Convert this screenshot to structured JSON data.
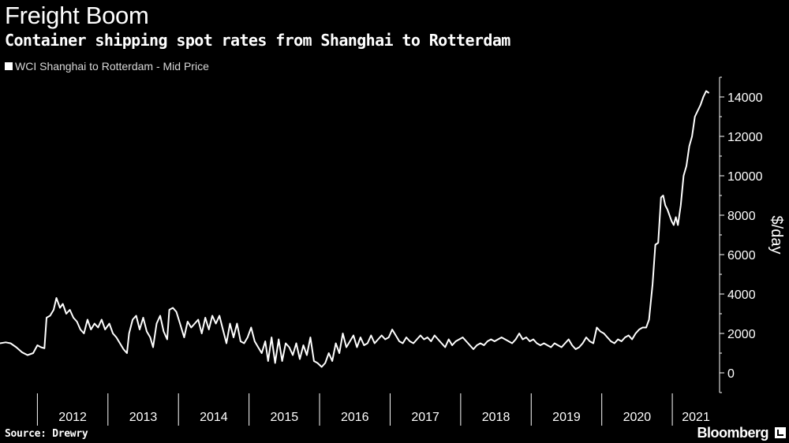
{
  "header": {
    "title": "Freight Boom",
    "subtitle": "Container shipping spot rates from Shanghai to Rotterdam"
  },
  "footer": {
    "source": "Source: Drewry",
    "brand": "Bloomberg"
  },
  "colors": {
    "background": "#000000",
    "line": "#ffffff",
    "axis": "#ffffff"
  },
  "chart_data": {
    "type": "line",
    "title": "Freight Boom",
    "subtitle": "Container shipping spot rates from Shanghai to Rotterdam",
    "ylabel": "$/day",
    "ylim": [
      -1000,
      15000
    ],
    "yticks": [
      0,
      2000,
      4000,
      6000,
      8000,
      10000,
      12000,
      14000
    ],
    "xlim": [
      2011.47,
      2021.67
    ],
    "x_tick_labels": [
      "2012",
      "2013",
      "2014",
      "2015",
      "2016",
      "2017",
      "2018",
      "2019",
      "2020",
      "2021"
    ],
    "legend": "top-left",
    "grid": false,
    "series": [
      {
        "name": "WCI Shanghai to Rotterdam - Mid Price",
        "points": [
          [
            2011.47,
            1500
          ],
          [
            2011.55,
            1550
          ],
          [
            2011.62,
            1500
          ],
          [
            2011.7,
            1300
          ],
          [
            2011.78,
            1050
          ],
          [
            2011.86,
            900
          ],
          [
            2011.94,
            1000
          ],
          [
            2012.0,
            1400
          ],
          [
            2012.05,
            1300
          ],
          [
            2012.1,
            1250
          ],
          [
            2012.13,
            2800
          ],
          [
            2012.18,
            2900
          ],
          [
            2012.23,
            3200
          ],
          [
            2012.27,
            3800
          ],
          [
            2012.32,
            3300
          ],
          [
            2012.36,
            3500
          ],
          [
            2012.41,
            3000
          ],
          [
            2012.46,
            3200
          ],
          [
            2012.51,
            2800
          ],
          [
            2012.56,
            2600
          ],
          [
            2012.61,
            2200
          ],
          [
            2012.66,
            2000
          ],
          [
            2012.71,
            2700
          ],
          [
            2012.76,
            2200
          ],
          [
            2012.81,
            2500
          ],
          [
            2012.86,
            2300
          ],
          [
            2012.91,
            2700
          ],
          [
            2012.96,
            2200
          ],
          [
            2013.02,
            2500
          ],
          [
            2013.07,
            2000
          ],
          [
            2013.12,
            1800
          ],
          [
            2013.17,
            1500
          ],
          [
            2013.22,
            1200
          ],
          [
            2013.27,
            1000
          ],
          [
            2013.3,
            2000
          ],
          [
            2013.35,
            2700
          ],
          [
            2013.4,
            2900
          ],
          [
            2013.45,
            2200
          ],
          [
            2013.5,
            2800
          ],
          [
            2013.55,
            2100
          ],
          [
            2013.6,
            1800
          ],
          [
            2013.64,
            1300
          ],
          [
            2013.69,
            2500
          ],
          [
            2013.74,
            2900
          ],
          [
            2013.79,
            2100
          ],
          [
            2013.84,
            1700
          ],
          [
            2013.87,
            3200
          ],
          [
            2013.92,
            3300
          ],
          [
            2013.97,
            3100
          ],
          [
            2014.03,
            2400
          ],
          [
            2014.08,
            1800
          ],
          [
            2014.13,
            2600
          ],
          [
            2014.18,
            2300
          ],
          [
            2014.23,
            2500
          ],
          [
            2014.28,
            2700
          ],
          [
            2014.33,
            2000
          ],
          [
            2014.38,
            2800
          ],
          [
            2014.43,
            2200
          ],
          [
            2014.48,
            2900
          ],
          [
            2014.53,
            2500
          ],
          [
            2014.58,
            2900
          ],
          [
            2014.63,
            2200
          ],
          [
            2014.68,
            1500
          ],
          [
            2014.73,
            2500
          ],
          [
            2014.78,
            1800
          ],
          [
            2014.83,
            2500
          ],
          [
            2014.88,
            1600
          ],
          [
            2014.93,
            1500
          ],
          [
            2014.98,
            1800
          ],
          [
            2015.03,
            2300
          ],
          [
            2015.08,
            1600
          ],
          [
            2015.13,
            1300
          ],
          [
            2015.18,
            1000
          ],
          [
            2015.23,
            1600
          ],
          [
            2015.27,
            600
          ],
          [
            2015.32,
            1800
          ],
          [
            2015.37,
            500
          ],
          [
            2015.42,
            1700
          ],
          [
            2015.47,
            600
          ],
          [
            2015.52,
            1500
          ],
          [
            2015.57,
            1300
          ],
          [
            2015.62,
            900
          ],
          [
            2015.67,
            1500
          ],
          [
            2015.72,
            700
          ],
          [
            2015.77,
            1400
          ],
          [
            2015.82,
            900
          ],
          [
            2015.87,
            1800
          ],
          [
            2015.92,
            600
          ],
          [
            2015.97,
            500
          ],
          [
            2016.03,
            300
          ],
          [
            2016.08,
            500
          ],
          [
            2016.13,
            1000
          ],
          [
            2016.18,
            600
          ],
          [
            2016.23,
            1500
          ],
          [
            2016.28,
            1000
          ],
          [
            2016.33,
            2000
          ],
          [
            2016.38,
            1300
          ],
          [
            2016.43,
            1600
          ],
          [
            2016.48,
            1900
          ],
          [
            2016.53,
            1300
          ],
          [
            2016.58,
            1800
          ],
          [
            2016.63,
            1400
          ],
          [
            2016.68,
            1500
          ],
          [
            2016.73,
            1900
          ],
          [
            2016.78,
            1500
          ],
          [
            2016.83,
            1700
          ],
          [
            2016.88,
            1900
          ],
          [
            2016.93,
            1700
          ],
          [
            2016.98,
            1800
          ],
          [
            2017.03,
            2200
          ],
          [
            2017.08,
            1900
          ],
          [
            2017.13,
            1600
          ],
          [
            2017.18,
            1500
          ],
          [
            2017.23,
            1800
          ],
          [
            2017.28,
            1600
          ],
          [
            2017.33,
            1500
          ],
          [
            2017.38,
            1700
          ],
          [
            2017.43,
            1900
          ],
          [
            2017.48,
            1700
          ],
          [
            2017.53,
            1800
          ],
          [
            2017.58,
            1600
          ],
          [
            2017.63,
            1900
          ],
          [
            2017.68,
            1700
          ],
          [
            2017.73,
            1500
          ],
          [
            2017.78,
            1300
          ],
          [
            2017.83,
            1700
          ],
          [
            2017.88,
            1400
          ],
          [
            2017.93,
            1600
          ],
          [
            2017.98,
            1700
          ],
          [
            2018.03,
            1800
          ],
          [
            2018.08,
            1600
          ],
          [
            2018.13,
            1400
          ],
          [
            2018.18,
            1200
          ],
          [
            2018.23,
            1400
          ],
          [
            2018.28,
            1500
          ],
          [
            2018.33,
            1400
          ],
          [
            2018.38,
            1600
          ],
          [
            2018.43,
            1700
          ],
          [
            2018.48,
            1600
          ],
          [
            2018.53,
            1700
          ],
          [
            2018.58,
            1800
          ],
          [
            2018.63,
            1700
          ],
          [
            2018.68,
            1600
          ],
          [
            2018.73,
            1500
          ],
          [
            2018.78,
            1700
          ],
          [
            2018.83,
            2000
          ],
          [
            2018.88,
            1700
          ],
          [
            2018.93,
            1800
          ],
          [
            2018.98,
            1600
          ],
          [
            2019.03,
            1700
          ],
          [
            2019.08,
            1500
          ],
          [
            2019.13,
            1400
          ],
          [
            2019.18,
            1500
          ],
          [
            2019.23,
            1400
          ],
          [
            2019.28,
            1300
          ],
          [
            2019.33,
            1500
          ],
          [
            2019.38,
            1400
          ],
          [
            2019.43,
            1300
          ],
          [
            2019.48,
            1500
          ],
          [
            2019.53,
            1700
          ],
          [
            2019.58,
            1400
          ],
          [
            2019.63,
            1200
          ],
          [
            2019.68,
            1300
          ],
          [
            2019.73,
            1500
          ],
          [
            2019.78,
            1800
          ],
          [
            2019.83,
            1600
          ],
          [
            2019.88,
            1500
          ],
          [
            2019.93,
            2300
          ],
          [
            2019.98,
            2100
          ],
          [
            2020.03,
            2000
          ],
          [
            2020.08,
            1800
          ],
          [
            2020.13,
            1600
          ],
          [
            2020.18,
            1500
          ],
          [
            2020.23,
            1700
          ],
          [
            2020.28,
            1600
          ],
          [
            2020.33,
            1800
          ],
          [
            2020.38,
            1900
          ],
          [
            2020.43,
            1700
          ],
          [
            2020.48,
            2000
          ],
          [
            2020.53,
            2200
          ],
          [
            2020.58,
            2300
          ],
          [
            2020.63,
            2300
          ],
          [
            2020.67,
            2700
          ],
          [
            2020.72,
            4500
          ],
          [
            2020.76,
            6500
          ],
          [
            2020.8,
            6600
          ],
          [
            2020.84,
            8900
          ],
          [
            2020.87,
            9000
          ],
          [
            2020.9,
            8500
          ],
          [
            2020.93,
            8300
          ],
          [
            2020.96,
            8000
          ],
          [
            2020.99,
            7700
          ],
          [
            2021.02,
            7500
          ],
          [
            2021.05,
            7900
          ],
          [
            2021.08,
            7500
          ],
          [
            2021.12,
            8500
          ],
          [
            2021.16,
            10000
          ],
          [
            2021.2,
            10500
          ],
          [
            2021.24,
            11500
          ],
          [
            2021.28,
            12000
          ],
          [
            2021.32,
            13000
          ],
          [
            2021.36,
            13300
          ],
          [
            2021.4,
            13600
          ],
          [
            2021.44,
            14000
          ],
          [
            2021.48,
            14300
          ],
          [
            2021.52,
            14200
          ]
        ]
      }
    ]
  }
}
